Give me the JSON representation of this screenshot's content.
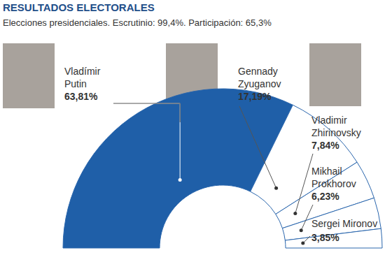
{
  "chart_data": {
    "type": "pie",
    "title": "RESULTADOS ELECTORALES",
    "subtitle": "Elecciones presidenciales. Escrutinio: 99,4%. Participación: 65,3%",
    "categories": [
      "Vladímir Putin",
      "Gennady Zyuganov",
      "Vladimir Zhirinovsky",
      "Mikhail Prokhorov",
      "Sergei Mironov"
    ],
    "values": [
      63.81,
      17.19,
      7.84,
      6.23,
      3.85
    ],
    "value_labels": [
      "63,81%",
      "17,19%",
      "7,84%",
      "6,23%",
      "3,85%"
    ],
    "colors": [
      "#1f5fa8",
      "#ffffff",
      "#ffffff",
      "#ffffff",
      "#ffffff"
    ],
    "data_labels": true
  }
}
